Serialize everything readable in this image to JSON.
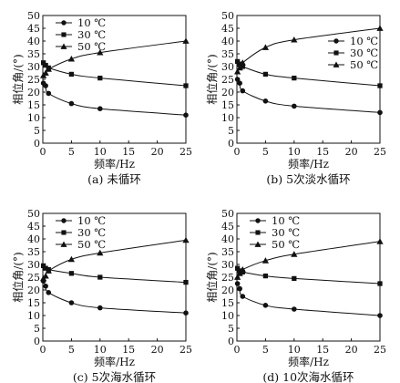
{
  "chart_data": [
    {
      "type": "line",
      "caption": "(a) 未循环",
      "xlabel": "频率/Hz",
      "ylabel": "相位角/(°)",
      "xlim": [
        0,
        25
      ],
      "ylim": [
        0,
        50
      ],
      "xticks": [
        0,
        5,
        10,
        15,
        20,
        25
      ],
      "yticks": [
        0,
        5,
        10,
        15,
        20,
        25,
        30,
        35,
        40,
        45,
        50
      ],
      "legend_position": "top-left",
      "x": [
        0.1,
        0.5,
        1,
        5,
        10,
        25
      ],
      "series": [
        {
          "name": "10 ℃",
          "marker": "circle",
          "values": [
            23.5,
            22.5,
            19.5,
            15.5,
            13.5,
            11
          ]
        },
        {
          "name": "30 ℃",
          "marker": "square",
          "values": [
            31.5,
            30.5,
            29.5,
            27,
            25.5,
            22.5
          ]
        },
        {
          "name": "50 ℃",
          "marker": "triangle",
          "values": [
            26.5,
            27.5,
            29,
            33,
            35.5,
            40
          ]
        }
      ]
    },
    {
      "type": "line",
      "caption": "(b) 5次淡水循环",
      "xlabel": "频率/Hz",
      "ylabel": "相位角/(°)",
      "xlim": [
        0,
        25
      ],
      "ylim": [
        0,
        50
      ],
      "xticks": [
        0,
        5,
        10,
        15,
        20,
        25
      ],
      "yticks": [
        0,
        5,
        10,
        15,
        20,
        25,
        30,
        35,
        40,
        45,
        50
      ],
      "legend_position": "middle-right",
      "x": [
        0.1,
        0.5,
        1,
        5,
        10,
        25
      ],
      "series": [
        {
          "name": "10 ℃",
          "marker": "circle",
          "values": [
            25,
            23.5,
            20.5,
            16.5,
            14.5,
            12
          ]
        },
        {
          "name": "30 ℃",
          "marker": "square",
          "values": [
            32,
            31,
            30,
            27,
            25.5,
            22.5
          ]
        },
        {
          "name": "50 ℃",
          "marker": "triangle",
          "values": [
            28,
            29.5,
            31.5,
            37.5,
            40.5,
            45
          ]
        }
      ]
    },
    {
      "type": "line",
      "caption": "(c) 5次海水循环",
      "xlabel": "频率/Hz",
      "ylabel": "相位角/(°)",
      "xlim": [
        0,
        25
      ],
      "ylim": [
        0,
        50
      ],
      "xticks": [
        0,
        5,
        10,
        15,
        20,
        25
      ],
      "yticks": [
        0,
        5,
        10,
        15,
        20,
        25,
        30,
        35,
        40,
        45,
        50
      ],
      "legend_position": "top-left",
      "x": [
        0.1,
        0.5,
        1,
        5,
        10,
        25
      ],
      "series": [
        {
          "name": "10 ℃",
          "marker": "circle",
          "values": [
            23.5,
            21.5,
            19,
            15,
            13,
            11
          ]
        },
        {
          "name": "30 ℃",
          "marker": "square",
          "values": [
            29.5,
            28.5,
            28,
            26.5,
            25,
            23
          ]
        },
        {
          "name": "50 ℃",
          "marker": "triangle",
          "values": [
            24.5,
            25.5,
            27.5,
            32,
            34.5,
            39.5
          ]
        }
      ]
    },
    {
      "type": "line",
      "caption": "(d) 10次海水循环",
      "xlabel": "频率/Hz",
      "ylabel": "相位角/(°)",
      "xlim": [
        0,
        25
      ],
      "ylim": [
        0,
        50
      ],
      "xticks": [
        0,
        5,
        10,
        15,
        20,
        25
      ],
      "yticks": [
        0,
        5,
        10,
        15,
        20,
        25,
        30,
        35,
        40,
        45,
        50
      ],
      "legend_position": "top-left",
      "x": [
        0.1,
        0.5,
        1,
        5,
        10,
        25
      ],
      "series": [
        {
          "name": "10 ℃",
          "marker": "circle",
          "values": [
            22.5,
            20.5,
            17.5,
            14,
            12.5,
            10
          ]
        },
        {
          "name": "30 ℃",
          "marker": "square",
          "values": [
            28.5,
            27.5,
            27,
            25.5,
            24.5,
            22.5
          ]
        },
        {
          "name": "50 ℃",
          "marker": "triangle",
          "values": [
            25,
            26.5,
            28,
            31.5,
            34,
            39
          ]
        }
      ]
    }
  ]
}
